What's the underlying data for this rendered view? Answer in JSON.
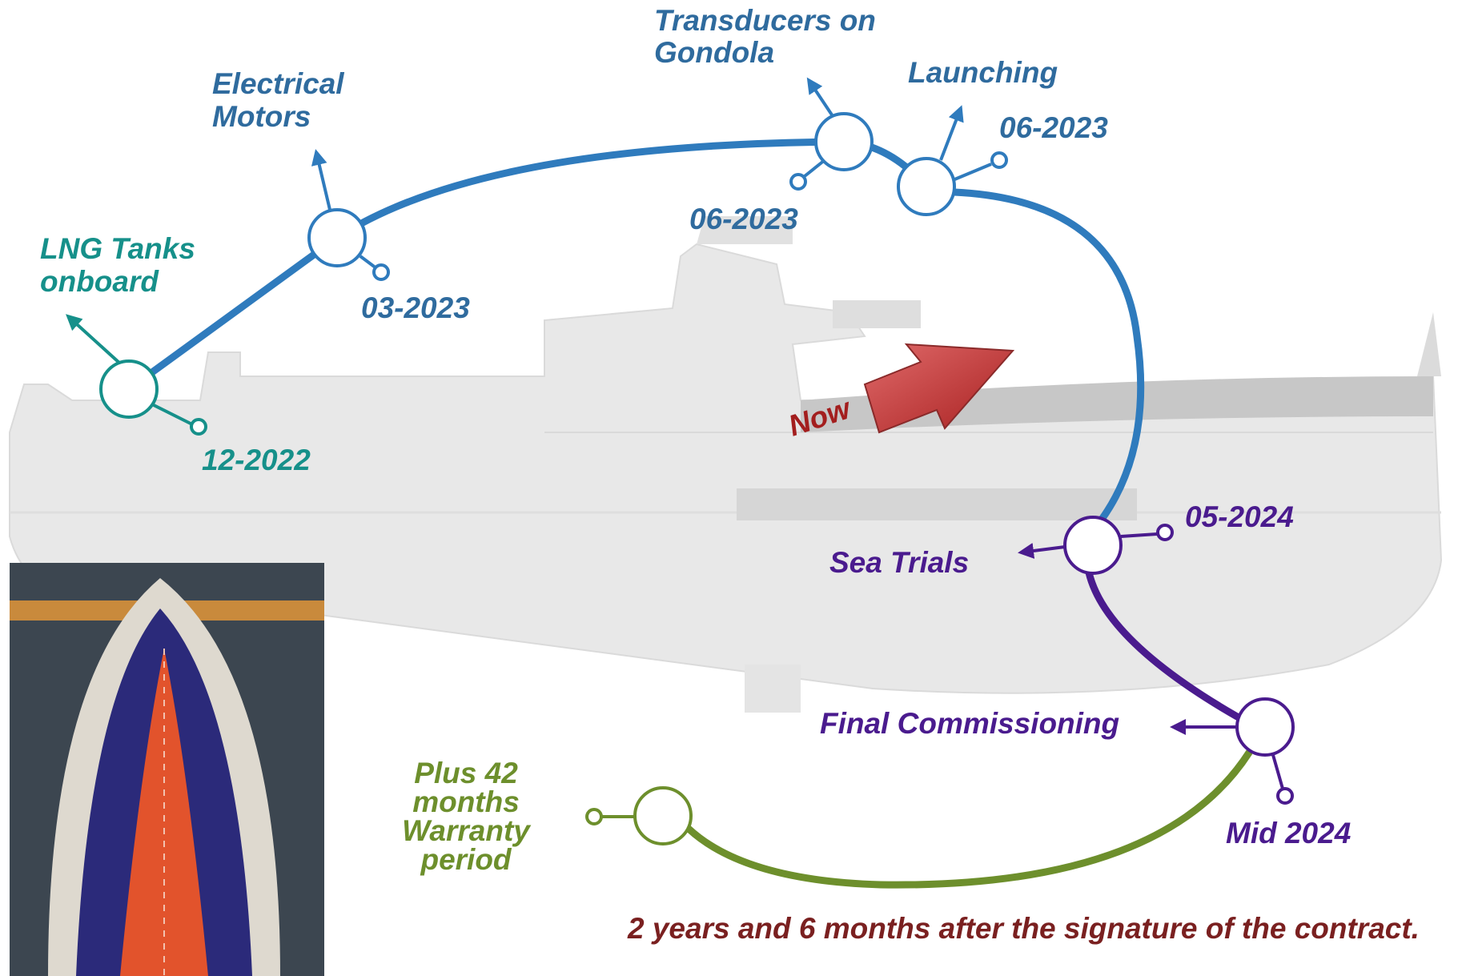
{
  "milestones": [
    {
      "label": [
        "LNG Tanks",
        "onboard"
      ],
      "date": "12-2022"
    },
    {
      "label": [
        "Electrical",
        "Motors"
      ],
      "date": "03-2023"
    },
    {
      "label": [
        "Transducers on",
        "Gondola"
      ],
      "date": "06-2023"
    },
    {
      "label": [
        "Launching"
      ],
      "date": "06-2023"
    },
    {
      "label": [
        "Sea Trials"
      ],
      "date": "05-2024"
    },
    {
      "label": [
        "Final Commissioning"
      ],
      "date": "Mid 2024"
    },
    {
      "label": [
        "Plus 42",
        "months",
        "Warranty",
        "period"
      ]
    }
  ],
  "now_marker": "Now",
  "footer_note": "2 years and 6 months after the signature of the contract."
}
